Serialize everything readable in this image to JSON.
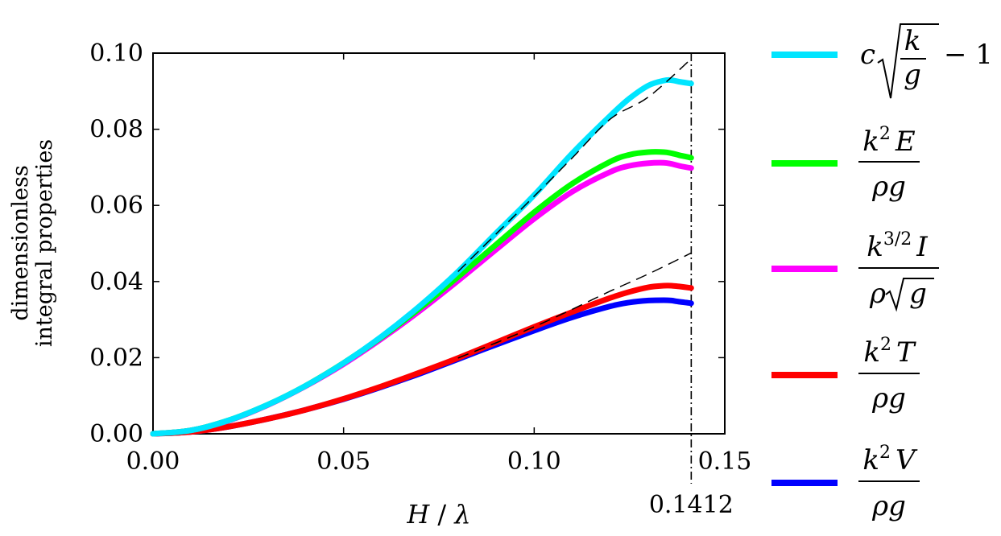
{
  "chart_data": {
    "type": "line",
    "xlabel_parts": {
      "var": "H",
      "sep": " / ",
      "var2": "λ"
    },
    "ylabel_lines": [
      "dimensionless",
      "integral properties"
    ],
    "xlim": [
      0.0,
      0.15
    ],
    "ylim": [
      0.0,
      0.1
    ],
    "x_ticks": [
      "0.00",
      "0.05",
      "0.10",
      "0.15"
    ],
    "y_ticks": [
      "0.00",
      "0.02",
      "0.04",
      "0.06",
      "0.08",
      "0.10"
    ],
    "limit_line": {
      "x": 0.1412,
      "label": "0.1412",
      "style": "dash-dot"
    },
    "legend_placement": "right, outside",
    "series": [
      {
        "key": "c",
        "color": "#00e5ff",
        "x": [
          0,
          0.01,
          0.02,
          0.03,
          0.04,
          0.05,
          0.06,
          0.07,
          0.08,
          0.09,
          0.1,
          0.11,
          0.12,
          0.125,
          0.13,
          0.134,
          0.136,
          0.138,
          0.1412
        ],
        "y": [
          0,
          0.0009,
          0.0036,
          0.0076,
          0.0126,
          0.0186,
          0.0256,
          0.0336,
          0.0426,
          0.0527,
          0.0627,
          0.0737,
          0.0836,
          0.0881,
          0.0915,
          0.0928,
          0.0929,
          0.0925,
          0.092
        ]
      },
      {
        "key": "E",
        "color": "#00ff00",
        "x": [
          0,
          0.01,
          0.02,
          0.03,
          0.04,
          0.05,
          0.06,
          0.07,
          0.08,
          0.09,
          0.1,
          0.11,
          0.12,
          0.125,
          0.13,
          0.134,
          0.136,
          0.138,
          0.1412
        ],
        "y": [
          0,
          0.0009,
          0.0036,
          0.0076,
          0.0126,
          0.0186,
          0.0254,
          0.033,
          0.0412,
          0.0497,
          0.0582,
          0.0657,
          0.0715,
          0.0733,
          0.074,
          0.074,
          0.0737,
          0.0732,
          0.0725
        ]
      },
      {
        "key": "I",
        "color": "#ff00ff",
        "x": [
          0,
          0.01,
          0.02,
          0.03,
          0.04,
          0.05,
          0.06,
          0.07,
          0.08,
          0.09,
          0.1,
          0.11,
          0.12,
          0.125,
          0.13,
          0.134,
          0.136,
          0.138,
          0.1412
        ],
        "y": [
          0,
          0.0009,
          0.0035,
          0.0075,
          0.0125,
          0.0183,
          0.025,
          0.0323,
          0.0402,
          0.0484,
          0.0565,
          0.0636,
          0.0688,
          0.0704,
          0.0711,
          0.0712,
          0.0709,
          0.0704,
          0.0698
        ]
      },
      {
        "key": "T",
        "color": "#ff0000",
        "x": [
          0,
          0.01,
          0.02,
          0.03,
          0.04,
          0.05,
          0.06,
          0.07,
          0.08,
          0.09,
          0.1,
          0.11,
          0.12,
          0.125,
          0.13,
          0.134,
          0.136,
          0.138,
          0.1412
        ],
        "y": [
          0,
          0.0005,
          0.0019,
          0.0039,
          0.0063,
          0.0092,
          0.0125,
          0.0161,
          0.0199,
          0.024,
          0.0281,
          0.032,
          0.0357,
          0.0373,
          0.0385,
          0.0389,
          0.0389,
          0.0387,
          0.0383
        ]
      },
      {
        "key": "V",
        "color": "#0000ff",
        "x": [
          0,
          0.01,
          0.02,
          0.03,
          0.04,
          0.05,
          0.06,
          0.07,
          0.08,
          0.09,
          0.1,
          0.11,
          0.12,
          0.125,
          0.13,
          0.134,
          0.136,
          0.138,
          0.1412
        ],
        "y": [
          0,
          0.0005,
          0.0019,
          0.0039,
          0.0063,
          0.0091,
          0.0123,
          0.0158,
          0.0196,
          0.0234,
          0.0271,
          0.0306,
          0.0335,
          0.0345,
          0.035,
          0.0351,
          0.035,
          0.0347,
          0.0343
        ]
      }
    ],
    "asymptotes": [
      {
        "style": "dashed",
        "x": [
          0.08,
          0.09,
          0.1,
          0.11,
          0.12,
          0.13,
          0.1412
        ],
        "y": [
          0.0426,
          0.0525,
          0.0624,
          0.0725,
          0.0827,
          0.0885,
          0.0985
        ]
      },
      {
        "style": "dashed",
        "x": [
          0.08,
          0.09,
          0.1,
          0.11,
          0.12,
          0.13,
          0.1412
        ],
        "y": [
          0.0199,
          0.0239,
          0.0281,
          0.0327,
          0.0375,
          0.042,
          0.0475
        ]
      }
    ],
    "legend": [
      {
        "series": "c",
        "c": "c",
        "k": "k",
        "g": "g",
        "minus_one": "− 1"
      },
      {
        "series": "E",
        "num_k": "k",
        "num_sup": "2",
        "num_var": "E",
        "den": "ρg"
      },
      {
        "series": "I",
        "num_k": "k",
        "num_sup": "3/2",
        "num_var": "I",
        "den_rho": "ρ",
        "den_g": "g"
      },
      {
        "series": "T",
        "num_k": "k",
        "num_sup": "2",
        "num_var": "T",
        "den": "ρg"
      },
      {
        "series": "V",
        "num_k": "k",
        "num_sup": "2",
        "num_var": "V",
        "den": "ρg"
      }
    ]
  }
}
